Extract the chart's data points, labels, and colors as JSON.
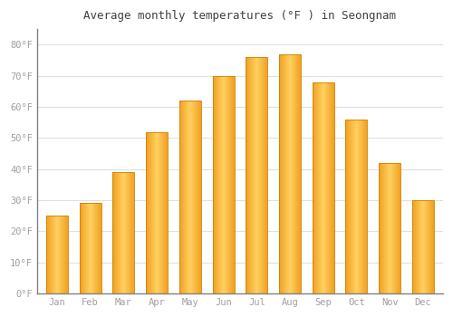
{
  "title": "Average monthly temperatures (°F ) in Seongnam",
  "months": [
    "Jan",
    "Feb",
    "Mar",
    "Apr",
    "May",
    "Jun",
    "Jul",
    "Aug",
    "Sep",
    "Oct",
    "Nov",
    "Dec"
  ],
  "values": [
    25,
    29,
    39,
    52,
    62,
    70,
    76,
    77,
    68,
    56,
    42,
    30
  ],
  "bar_color_left": "#F0A020",
  "bar_color_center": "#FFD060",
  "bar_color_right": "#F0A020",
  "bar_edge_color": "#D08000",
  "background_color": "#FFFFFF",
  "plot_bg_color": "#FFFFFF",
  "grid_color": "#E0E0E0",
  "text_color": "#A0A0A0",
  "title_color": "#404040",
  "ylim": [
    0,
    85
  ],
  "yticks": [
    0,
    10,
    20,
    30,
    40,
    50,
    60,
    70,
    80
  ],
  "ytick_labels": [
    "0°F",
    "10°F",
    "20°F",
    "30°F",
    "40°F",
    "50°F",
    "60°F",
    "70°F",
    "80°F"
  ],
  "bar_width": 0.65,
  "figsize": [
    5.0,
    3.5
  ],
  "dpi": 100
}
